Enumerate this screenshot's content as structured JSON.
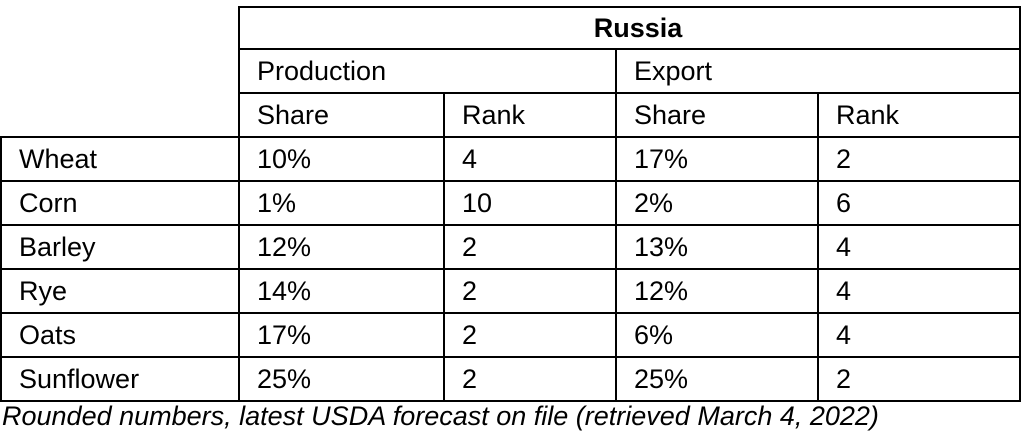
{
  "table": {
    "title": "Russia",
    "groups": [
      "Production",
      "Export"
    ],
    "subheaders": [
      "Share",
      "Rank",
      "Share",
      "Rank"
    ],
    "rows": [
      {
        "crop": "Wheat",
        "cells": [
          "10%",
          "4",
          "17%",
          "2"
        ]
      },
      {
        "crop": "Corn",
        "cells": [
          "1%",
          "10",
          "2%",
          "6"
        ]
      },
      {
        "crop": "Barley",
        "cells": [
          "12%",
          "2",
          "13%",
          "4"
        ]
      },
      {
        "crop": "Rye",
        "cells": [
          "14%",
          "2",
          "12%",
          "4"
        ]
      },
      {
        "crop": "Oats",
        "cells": [
          "17%",
          "2",
          "6%",
          "4"
        ]
      },
      {
        "crop": "Sunflower",
        "cells": [
          "25%",
          "2",
          "25%",
          "2"
        ]
      }
    ]
  },
  "footnote": "Rounded numbers, latest USDA forecast on file (retrieved March 4, 2022)"
}
